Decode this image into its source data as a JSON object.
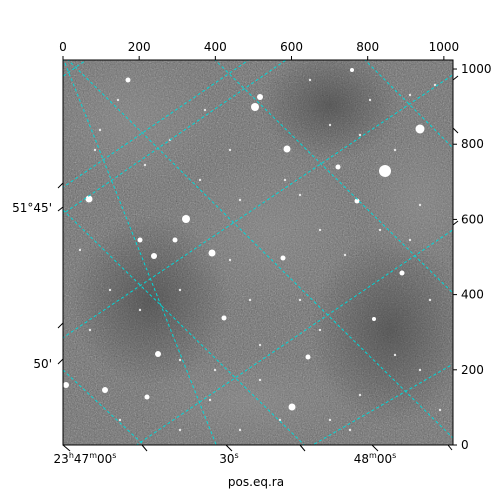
{
  "chart_data": {
    "type": "image",
    "xlabel": "pos.eq.ra",
    "ylabel": "",
    "grid": true,
    "grid_color": "#00d8d8",
    "image_colormap": "gray",
    "pixel_axis_x": {
      "ticks": [
        0,
        200,
        400,
        600,
        800,
        1000
      ],
      "range": [
        0,
        1024
      ]
    },
    "pixel_axis_y": {
      "ticks": [
        0,
        200,
        400,
        600,
        800,
        1000
      ],
      "range": [
        0,
        1024
      ]
    },
    "ra_ticks": [
      "23h47m00s",
      "30s",
      "48m00s"
    ],
    "dec_ticks": [
      "51°45'",
      "50'"
    ]
  }
}
